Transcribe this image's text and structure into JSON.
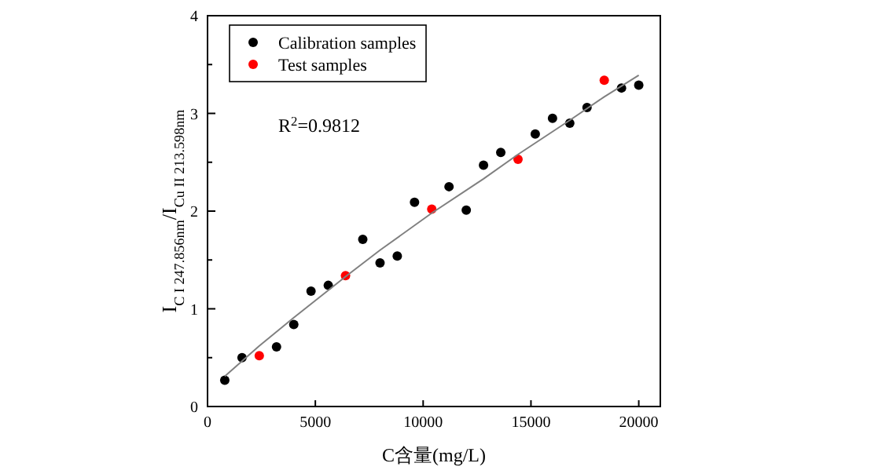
{
  "chart_data": {
    "type": "scatter",
    "xlabel": "C含量(mg/L)",
    "ylabel": "I$_{C I 247.856nm}$/I$_{Cu II 213.598nm}$",
    "annotations": [
      "R$^{2}$=0.9812"
    ],
    "xlim": [
      0,
      21000
    ],
    "xticks": [
      0,
      5000,
      10000,
      15000,
      20000
    ],
    "ylim": [
      0,
      4
    ],
    "yticks": [
      0,
      {
        "value": 0.5,
        "label": null
      },
      1,
      {
        "value": 1.5,
        "label": null
      },
      2,
      {
        "value": 2.5,
        "label": null
      },
      3,
      {
        "value": 3.5,
        "label": null
      },
      4
    ],
    "grid": false,
    "legend": "top left",
    "marker": "circle",
    "series": [
      {
        "name": "Calibration samples",
        "color": "#000000",
        "x": [
          800,
          1600,
          3200,
          4000,
          4800,
          5600,
          7200,
          8000,
          8800,
          9600,
          11200,
          12000,
          12800,
          13600,
          15200,
          16000,
          16800,
          17600,
          19200,
          20000
        ],
        "values": [
          0.27,
          0.5,
          0.61,
          0.84,
          1.18,
          1.24,
          1.71,
          1.47,
          1.54,
          2.09,
          2.25,
          2.01,
          2.47,
          2.6,
          2.79,
          2.95,
          2.9,
          3.06,
          3.26,
          3.29
        ]
      },
      {
        "name": "Test samples",
        "color": "#ff0000",
        "x": [
          2400,
          6400,
          10400,
          14400,
          18400
        ],
        "values": [
          0.52,
          1.34,
          2.02,
          2.53,
          3.34
        ]
      },
      {
        "type": "line",
        "color": "#808080",
        "marker": "none",
        "x": [
          800,
          2400,
          4000,
          6400,
          8000,
          10400,
          12800,
          14400,
          16800,
          18400,
          20000
        ],
        "values": [
          0.31,
          0.62,
          0.91,
          1.33,
          1.6,
          1.98,
          2.33,
          2.58,
          2.93,
          3.17,
          3.39
        ]
      }
    ]
  }
}
